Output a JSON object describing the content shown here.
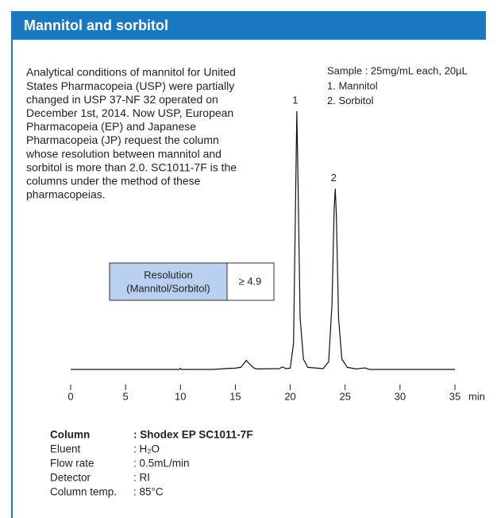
{
  "header": {
    "title": "Mannitol and sorbitol"
  },
  "description": [
    "Analytical conditions of mannitol for United",
    "States Pharmacopeia (USP) were partially",
    "changed in USP 37-NF 32 operated on",
    "December 1st, 2014. Now USP, European",
    "Pharmacopeia (EP) and Japanese",
    "Pharmacopeia (JP) request the column",
    "whose resolution between mannitol and",
    "sorbitol is more than 2.0. SC1011-7F is the",
    "columns under the method of these",
    "pharmacopeias."
  ],
  "sample": {
    "text": "Sample : 25mg/mL each, 20µL",
    "peaks": [
      "1. Mannitol",
      "2. Sorbitol"
    ]
  },
  "resolution": {
    "label": [
      "Resolution",
      "(Mannitol/Sorbitol)"
    ],
    "value": "≥ 4.9"
  },
  "chart_data": {
    "type": "line",
    "color": "#111111",
    "x": [
      0,
      9.9,
      10,
      10.1,
      13,
      14,
      15,
      15.5,
      16,
      16.3,
      16.7,
      17,
      19,
      19.3,
      19.6,
      20,
      20.3,
      20.5,
      20.6,
      20.7,
      20.9,
      21.2,
      21.6,
      23,
      23.5,
      23.8,
      24.0,
      24.1,
      24.2,
      24.4,
      24.7,
      25.2,
      26,
      26.8,
      27.2,
      35
    ],
    "values": [
      0,
      0,
      0.4,
      0,
      0,
      0.3,
      0.5,
      0.8,
      3.5,
      2,
      0.5,
      0.2,
      0.3,
      1,
      0.3,
      0.5,
      10,
      70,
      100,
      75,
      20,
      4,
      0.8,
      0.3,
      3,
      25,
      62,
      70,
      60,
      20,
      4,
      0.8,
      0.2,
      0.6,
      0,
      0
    ],
    "xlim": [
      0,
      35
    ],
    "xticks": [
      0,
      5,
      10,
      15,
      20,
      25,
      30,
      35
    ],
    "ylim": [
      0,
      100
    ],
    "xlabel": "min",
    "annotations": [
      {
        "x": 20.6,
        "text": "1"
      },
      {
        "x": 24.1,
        "text": "2"
      }
    ]
  },
  "conditions": [
    {
      "label": "Column",
      "value": ": Shodex EP SC1011-7F"
    },
    {
      "label": "Eluent",
      "value": ": H₂O"
    },
    {
      "label": "Flow rate",
      "value": ": 0.5mL/min"
    },
    {
      "label": "Detector",
      "value": ": RI"
    },
    {
      "label": "Column temp.",
      "value": ": 85°C"
    }
  ]
}
